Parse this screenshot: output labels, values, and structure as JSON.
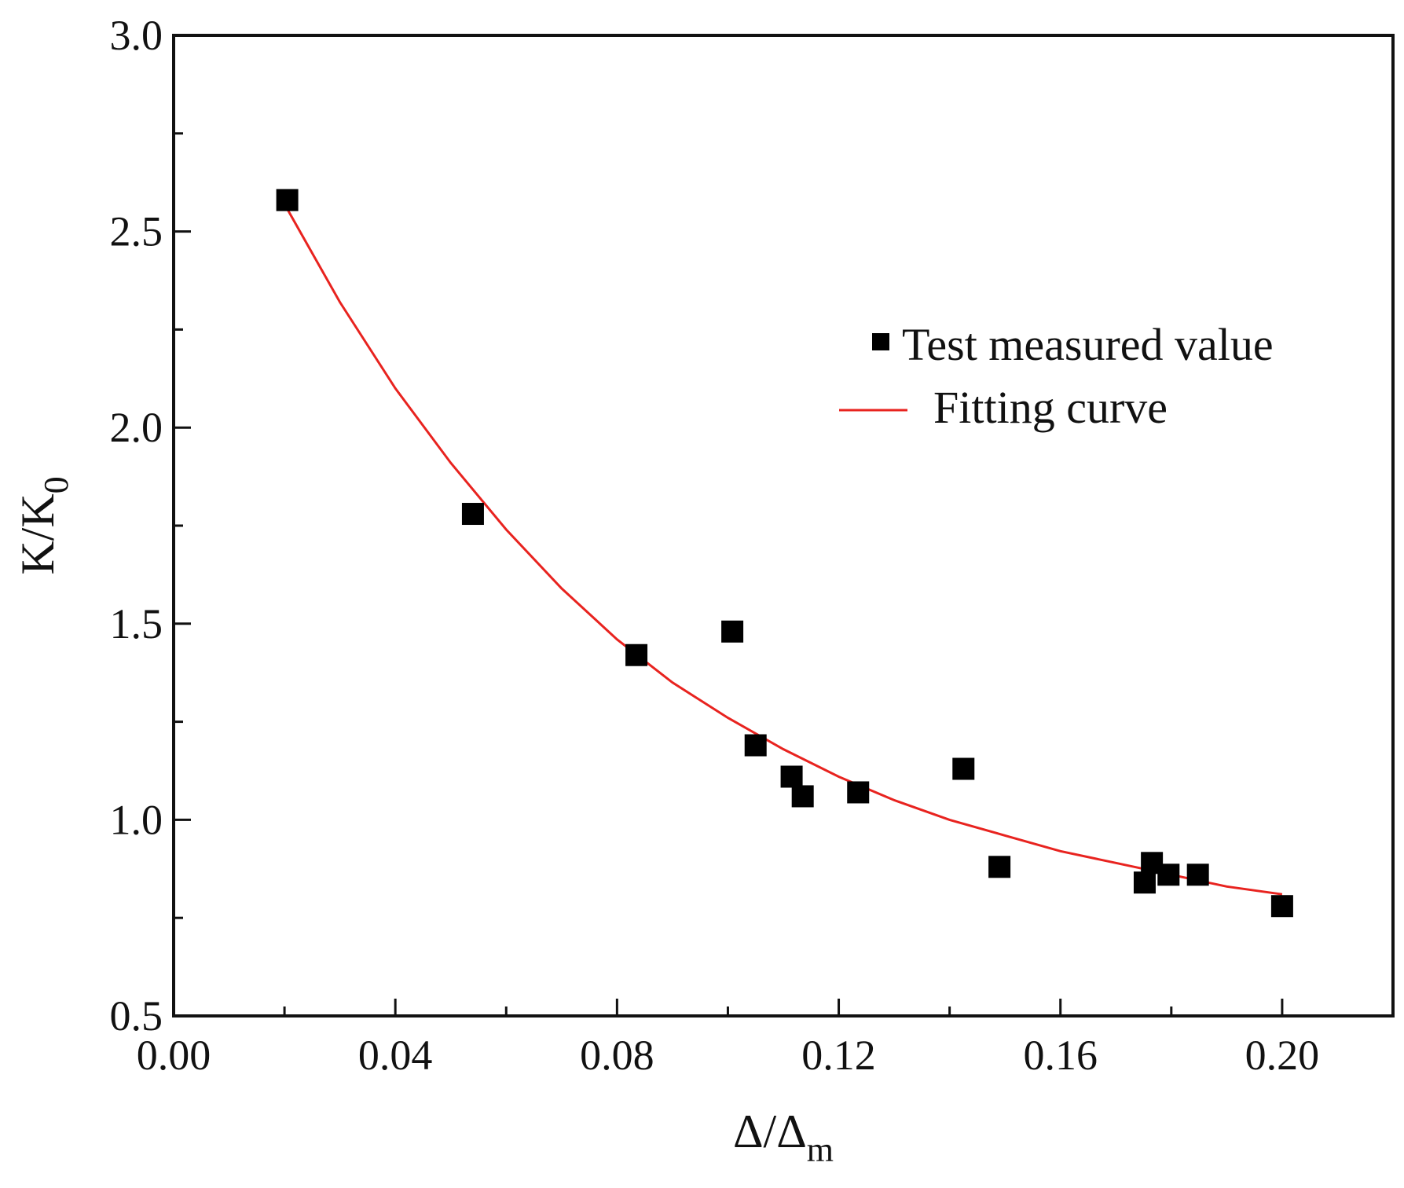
{
  "chart_data": {
    "type": "scatter",
    "title": "",
    "xlabel": {
      "main": "Δ/Δ",
      "sub": "m"
    },
    "ylabel": {
      "main": "K/K",
      "sub": "0"
    },
    "xlim": [
      0.0,
      0.22
    ],
    "ylim": [
      0.5,
      3.0
    ],
    "x_ticks": [
      0.0,
      0.04,
      0.08,
      0.12,
      0.16,
      0.2
    ],
    "x_tick_labels": [
      "0.00",
      "0.04",
      "0.08",
      "0.12",
      "0.16",
      "0.20"
    ],
    "x_minor_ticks": [
      0.02,
      0.06,
      0.1,
      0.14,
      0.18
    ],
    "y_ticks": [
      0.5,
      1.0,
      1.5,
      2.0,
      2.5,
      3.0
    ],
    "y_tick_labels": [
      "0.5",
      "1.0",
      "1.5",
      "2.0",
      "2.5",
      "3.0"
    ],
    "y_minor_ticks": [
      0.75,
      1.25,
      1.75,
      2.25,
      2.75
    ],
    "grid": false,
    "legend_position": "upper-right",
    "series": [
      {
        "name": "Test measured value",
        "kind": "scatter",
        "marker": "square",
        "color": "#000000",
        "points": [
          {
            "x": 0.0205,
            "y": 2.58
          },
          {
            "x": 0.054,
            "y": 1.78
          },
          {
            "x": 0.0835,
            "y": 1.42
          },
          {
            "x": 0.1008,
            "y": 1.48
          },
          {
            "x": 0.105,
            "y": 1.19
          },
          {
            "x": 0.1115,
            "y": 1.11
          },
          {
            "x": 0.1135,
            "y": 1.06
          },
          {
            "x": 0.1235,
            "y": 1.07
          },
          {
            "x": 0.1425,
            "y": 1.13
          },
          {
            "x": 0.149,
            "y": 0.88
          },
          {
            "x": 0.1752,
            "y": 0.84
          },
          {
            "x": 0.1765,
            "y": 0.89
          },
          {
            "x": 0.1795,
            "y": 0.86
          },
          {
            "x": 0.1848,
            "y": 0.86
          },
          {
            "x": 0.2,
            "y": 0.78
          }
        ]
      },
      {
        "name": "Fitting curve",
        "kind": "line",
        "color": "#e8231f",
        "points": [
          {
            "x": 0.02,
            "y": 2.57
          },
          {
            "x": 0.03,
            "y": 2.32
          },
          {
            "x": 0.04,
            "y": 2.1
          },
          {
            "x": 0.05,
            "y": 1.91
          },
          {
            "x": 0.06,
            "y": 1.74
          },
          {
            "x": 0.07,
            "y": 1.59
          },
          {
            "x": 0.08,
            "y": 1.46
          },
          {
            "x": 0.09,
            "y": 1.35
          },
          {
            "x": 0.1,
            "y": 1.26
          },
          {
            "x": 0.11,
            "y": 1.18
          },
          {
            "x": 0.12,
            "y": 1.11
          },
          {
            "x": 0.13,
            "y": 1.05
          },
          {
            "x": 0.14,
            "y": 1.0
          },
          {
            "x": 0.15,
            "y": 0.96
          },
          {
            "x": 0.16,
            "y": 0.92
          },
          {
            "x": 0.17,
            "y": 0.89
          },
          {
            "x": 0.18,
            "y": 0.86
          },
          {
            "x": 0.19,
            "y": 0.83
          },
          {
            "x": 0.2,
            "y": 0.81
          }
        ]
      }
    ]
  }
}
